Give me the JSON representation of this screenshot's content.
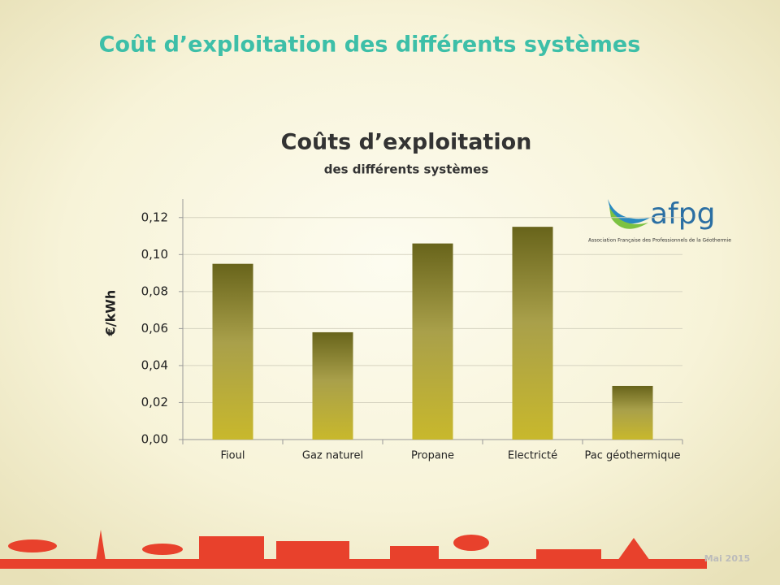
{
  "header": {
    "title": "Coût d’exploitation des différents systèmes"
  },
  "logo": {
    "name": "afpg",
    "caption": "Association Française des Professionnels de la Géothermie"
  },
  "footer": {
    "date": "Mai 2015"
  },
  "chart_data": {
    "type": "bar",
    "title": "Coûts d’exploitation",
    "subtitle": "des différents systèmes",
    "y_label": "€/kWh",
    "categories": [
      "Fioul",
      "Gaz naturel",
      "Propane",
      "Electricté",
      "Pac géothermique"
    ],
    "values": [
      0.095,
      0.058,
      0.106,
      0.115,
      0.029
    ],
    "color": "#a9a04a",
    "ylim": [
      0,
      0.13
    ],
    "yticks": [
      {
        "value": 0,
        "label": "0,00"
      },
      {
        "value": 0.02,
        "label": "0,02"
      },
      {
        "value": 0.04,
        "label": "0,04"
      },
      {
        "value": 0.06,
        "label": "0,06"
      },
      {
        "value": 0.08,
        "label": "0,08"
      },
      {
        "value": 0.1,
        "label": "0,10"
      },
      {
        "value": 0.12,
        "label": "0,12"
      }
    ],
    "grid": true
  }
}
